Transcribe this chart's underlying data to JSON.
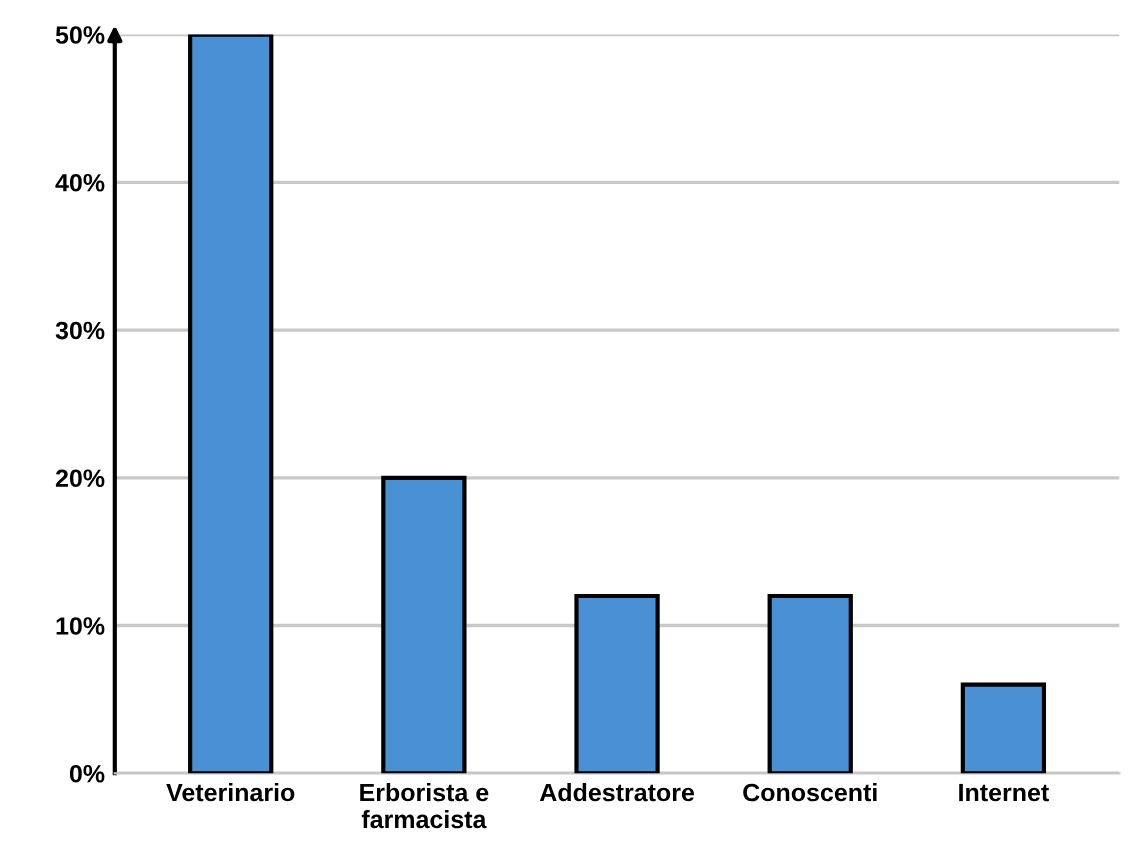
{
  "chart_data": {
    "type": "bar",
    "categories": [
      "Veterinario",
      "Erborista e\nfarmacista",
      "Addestratore",
      "Conoscenti",
      "Internet"
    ],
    "values": [
      50,
      20,
      12,
      12,
      6
    ],
    "color": "#4a90d4",
    "ylim": [
      0,
      50
    ],
    "yticks": [
      {
        "value": 0,
        "label": "0%"
      },
      {
        "value": 10,
        "label": "10%"
      },
      {
        "value": 20,
        "label": "20%"
      },
      {
        "value": 30,
        "label": "30%"
      },
      {
        "value": 40,
        "label": "40%"
      },
      {
        "value": 50,
        "label": "50%"
      }
    ],
    "grid": "y"
  }
}
